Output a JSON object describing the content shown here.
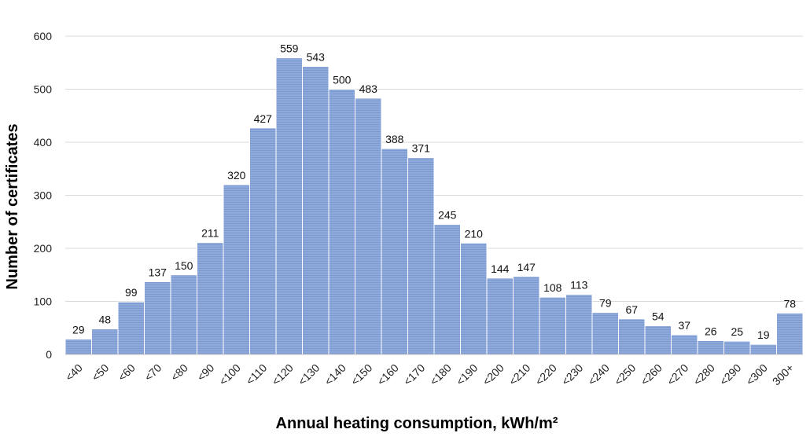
{
  "chart_data": {
    "type": "bar",
    "title": "",
    "xlabel": "Annual heating consumption, kWh/m²",
    "ylabel": "Number of certificates",
    "ylim": [
      0,
      600
    ],
    "yticks": [
      0,
      100,
      200,
      300,
      400,
      500,
      600
    ],
    "grid": true,
    "categories": [
      "<40",
      "<50",
      "<60",
      "<70",
      "<80",
      "<90",
      "<100",
      "<110",
      "<120",
      "<130",
      "<140",
      "<150",
      "<160",
      "<170",
      "<180",
      "<190",
      "<200",
      "<210",
      "<220",
      "<230",
      "<240",
      "<250",
      "<260",
      "<270",
      "<280",
      "<290",
      "<300",
      "300+"
    ],
    "values": [
      29,
      48,
      99,
      137,
      150,
      211,
      320,
      427,
      559,
      543,
      500,
      483,
      388,
      371,
      245,
      210,
      144,
      147,
      108,
      113,
      79,
      67,
      54,
      37,
      26,
      25,
      19,
      78
    ],
    "bar_color": "#8eaadb",
    "bar_stripe_color": "#6f8fca"
  }
}
